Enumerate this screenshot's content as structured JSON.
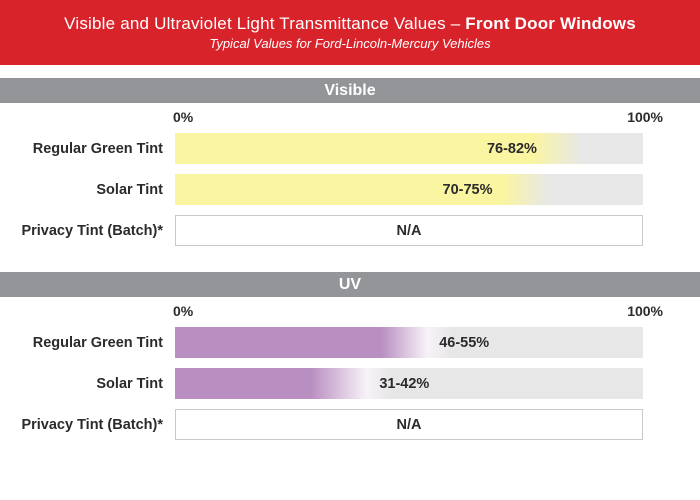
{
  "header": {
    "title_main": "Visible and Ultraviolet Light Transmittance Values – ",
    "title_emphasis": "Front Door Windows",
    "subtitle": "Typical Values for Ford-Lincoln-Mercury Vehicles"
  },
  "colors": {
    "banner_red": "#d9232b",
    "section_band_gray": "#939598",
    "bar_track_gray": "#e7e7e7",
    "visible_bar_yellow": "#faf5a0",
    "uv_bar_purple": "#b98ec1",
    "uv_fade_white": "#f7f3f8",
    "na_border_gray": "#c9c9c9",
    "text_dark": "#2b2b2b"
  },
  "chart_data": {
    "type": "bar",
    "title": "Visible and Ultraviolet Light Transmittance Values – Front Door Windows",
    "subtitle": "Typical Values for Ford-Lincoln-Mercury Vehicles",
    "axis": {
      "min_label": "0%",
      "max_label": "100%",
      "range": [
        0,
        100
      ],
      "unit": "%"
    },
    "categories": [
      "Regular Green Tint",
      "Solar Tint",
      "Privacy Tint (Batch)*"
    ],
    "sections": [
      {
        "name": "Visible",
        "bar_color": "#faf5a0",
        "rows": [
          {
            "label": "Regular Green Tint",
            "value_text": "76-82%",
            "low": 76,
            "high": 82,
            "na": false,
            "label_center_pct": 72
          },
          {
            "label": "Solar Tint",
            "value_text": "70-75%",
            "low": 70,
            "high": 75,
            "na": false,
            "label_center_pct": 62.5
          },
          {
            "label": "Privacy Tint (Batch)*",
            "value_text": "N/A",
            "low": null,
            "high": null,
            "na": true,
            "label_center_pct": 50
          }
        ]
      },
      {
        "name": "UV",
        "bar_color": "#b98ec1",
        "fade_via": "#f7f3f8",
        "rows": [
          {
            "label": "Regular Green Tint",
            "value_text": "46-55%",
            "low": 46,
            "high": 55,
            "na": false,
            "label_center_pct": 61.8
          },
          {
            "label": "Solar Tint",
            "value_text": "31-42%",
            "low": 31,
            "high": 42,
            "na": false,
            "label_center_pct": 49
          },
          {
            "label": "Privacy Tint (Batch)*",
            "value_text": "N/A",
            "low": null,
            "high": null,
            "na": true,
            "label_center_pct": 50
          }
        ]
      }
    ]
  }
}
